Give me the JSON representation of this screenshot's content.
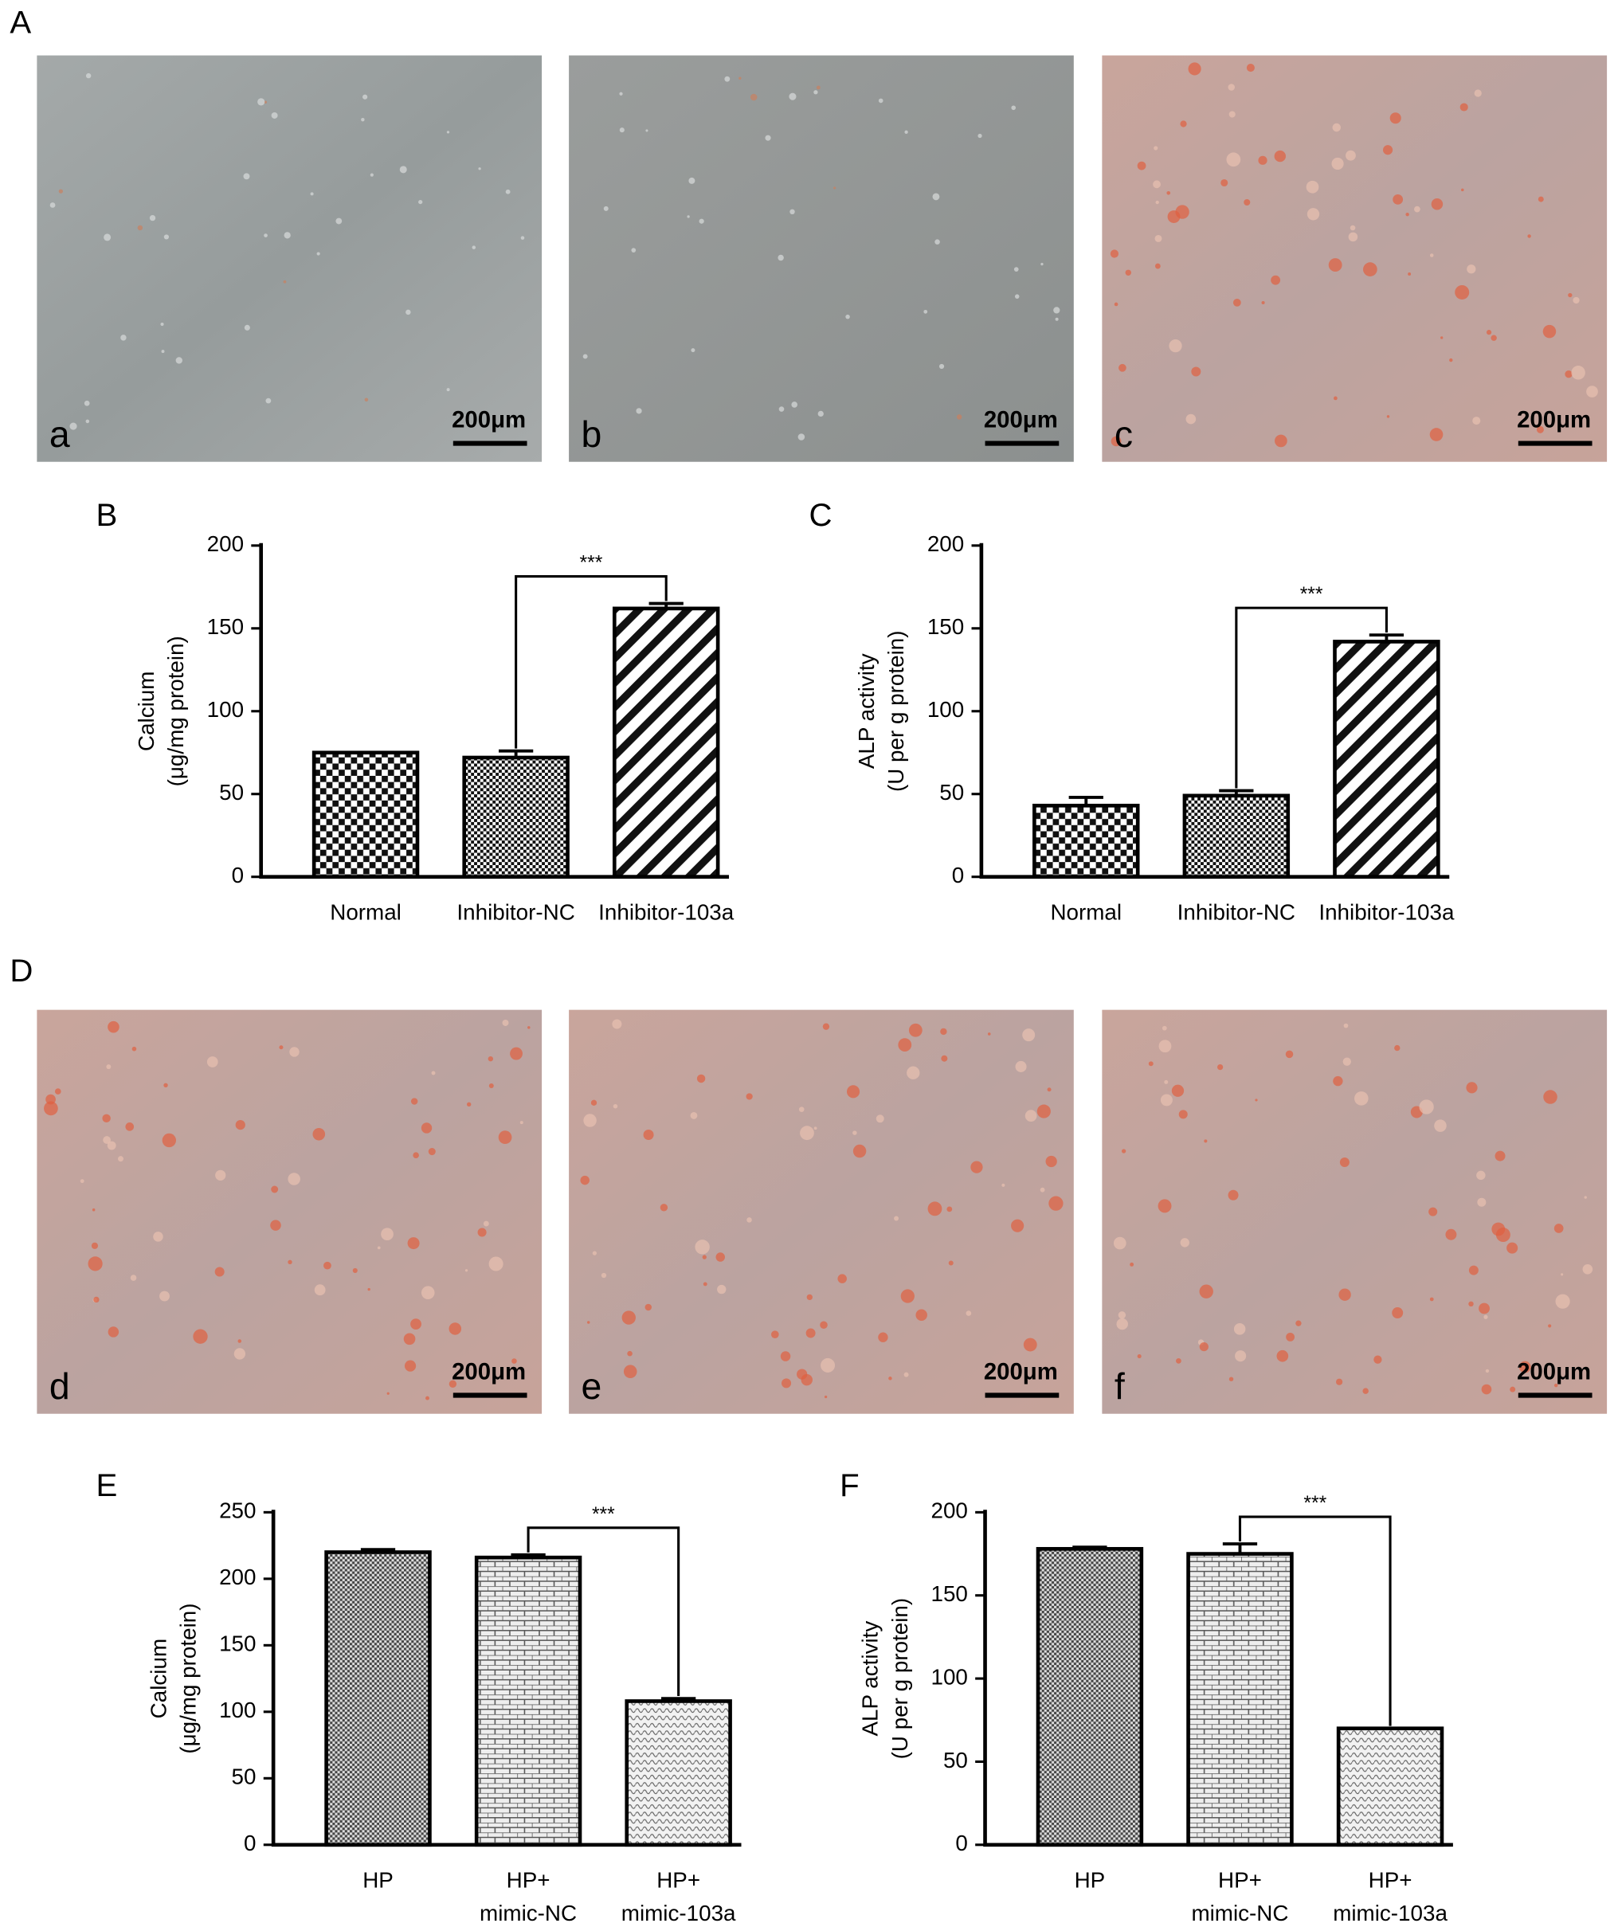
{
  "panels": [
    "A",
    "B",
    "C",
    "D",
    "E",
    "F"
  ],
  "images": [
    {
      "label": "a",
      "scale_bar": "200μm"
    },
    {
      "label": "b",
      "scale_bar": "200μm"
    },
    {
      "label": "c",
      "scale_bar": "200μm"
    },
    {
      "label": "d",
      "scale_bar": "200μm"
    },
    {
      "label": "e",
      "scale_bar": "200μm"
    },
    {
      "label": "f",
      "scale_bar": "200μm"
    }
  ],
  "chart_data": [
    {
      "type": "bar",
      "ylabel": [
        "Calcium",
        "(μg/mg protein)"
      ],
      "categories": [
        [
          "Normal"
        ],
        [
          "Inhibitor-NC"
        ],
        [
          "Inhibitor-103a"
        ]
      ],
      "values": [
        75,
        72,
        162
      ],
      "errors": [
        0,
        4,
        3
      ],
      "patterns": [
        "checker",
        "fine",
        "stripes"
      ],
      "ylim": [
        0,
        200
      ],
      "yticks": [
        0,
        50,
        100,
        150,
        200
      ],
      "annotation": "***",
      "bracket": [
        1,
        2
      ]
    },
    {
      "type": "bar",
      "ylabel": [
        "ALP activity",
        "(U per g protein)"
      ],
      "categories": [
        [
          "Normal"
        ],
        [
          "Inhibitor-NC"
        ],
        [
          "Inhibitor-103a"
        ]
      ],
      "values": [
        43,
        49,
        142
      ],
      "errors": [
        5,
        3,
        4
      ],
      "patterns": [
        "checker",
        "fine",
        "stripes"
      ],
      "ylim": [
        0,
        200
      ],
      "yticks": [
        0,
        50,
        100,
        150,
        200
      ],
      "annotation": "***",
      "bracket": [
        1,
        2
      ]
    },
    {
      "type": "bar",
      "ylabel": [
        "Calcium",
        "(μg/mg protein)"
      ],
      "categories": [
        [
          "HP"
        ],
        [
          "HP+",
          "mimic-NC"
        ],
        [
          "HP+",
          "mimic-103a"
        ]
      ],
      "values": [
        220,
        216,
        108
      ],
      "errors": [
        2,
        2,
        2
      ],
      "patterns": [
        "dense",
        "brick",
        "dots"
      ],
      "ylim": [
        0,
        250
      ],
      "yticks": [
        0,
        50,
        100,
        150,
        200,
        250
      ],
      "annotation": "***",
      "bracket": [
        1,
        2
      ]
    },
    {
      "type": "bar",
      "ylabel": [
        "ALP activity",
        "(U per g protein)"
      ],
      "categories": [
        [
          "HP"
        ],
        [
          "HP+",
          "mimic-NC"
        ],
        [
          "HP+",
          "mimic-103a"
        ]
      ],
      "values": [
        178,
        175,
        70
      ],
      "errors": [
        1,
        6,
        0
      ],
      "patterns": [
        "dense",
        "brick",
        "dots"
      ],
      "ylim": [
        0,
        200
      ],
      "yticks": [
        0,
        50,
        100,
        150,
        200
      ],
      "annotation": "***",
      "bracket": [
        1,
        2
      ]
    }
  ]
}
